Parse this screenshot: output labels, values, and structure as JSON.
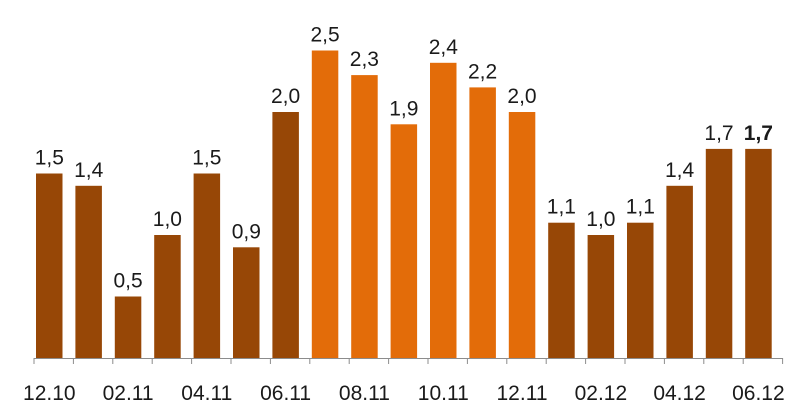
{
  "chart_data": {
    "type": "bar",
    "title": "",
    "xlabel": "",
    "ylabel": "",
    "ylim": [
      0,
      2.7
    ],
    "grid": false,
    "legend": "none",
    "values": [
      1.5,
      1.4,
      0.5,
      1.0,
      1.5,
      0.9,
      2.0,
      2.5,
      2.3,
      1.9,
      2.4,
      2.2,
      2.0,
      1.1,
      1.0,
      1.1,
      1.4,
      1.7,
      1.7
    ],
    "value_labels": [
      "1,5",
      "1,4",
      "0,5",
      "1,0",
      "1,5",
      "0,9",
      "2,0",
      "2,5",
      "2,3",
      "1,9",
      "2,4",
      "2,2",
      "2,0",
      "1,1",
      "1,0",
      "1,1",
      "1,4",
      "1,7",
      "1,7"
    ],
    "highlight_bars": [
      7,
      8,
      9,
      10,
      11,
      12
    ],
    "bold_label_bars": [
      18
    ],
    "tick_labels": [
      {
        "bar": 0,
        "text": "12.10"
      },
      {
        "bar": 2,
        "text": "02.11"
      },
      {
        "bar": 4,
        "text": "04.11"
      },
      {
        "bar": 6,
        "text": "06.11"
      },
      {
        "bar": 8,
        "text": "08.11"
      },
      {
        "bar": 10,
        "text": "10.11"
      },
      {
        "bar": 12,
        "text": "12.11"
      },
      {
        "bar": 14,
        "text": "02.12"
      },
      {
        "bar": 16,
        "text": "04.12"
      },
      {
        "bar": 18,
        "text": "06.12"
      }
    ],
    "colors": {
      "base": "#974706",
      "highlight": "#E36C09",
      "text": "#1a1a1a",
      "axis": "#8c8c8c"
    }
  }
}
